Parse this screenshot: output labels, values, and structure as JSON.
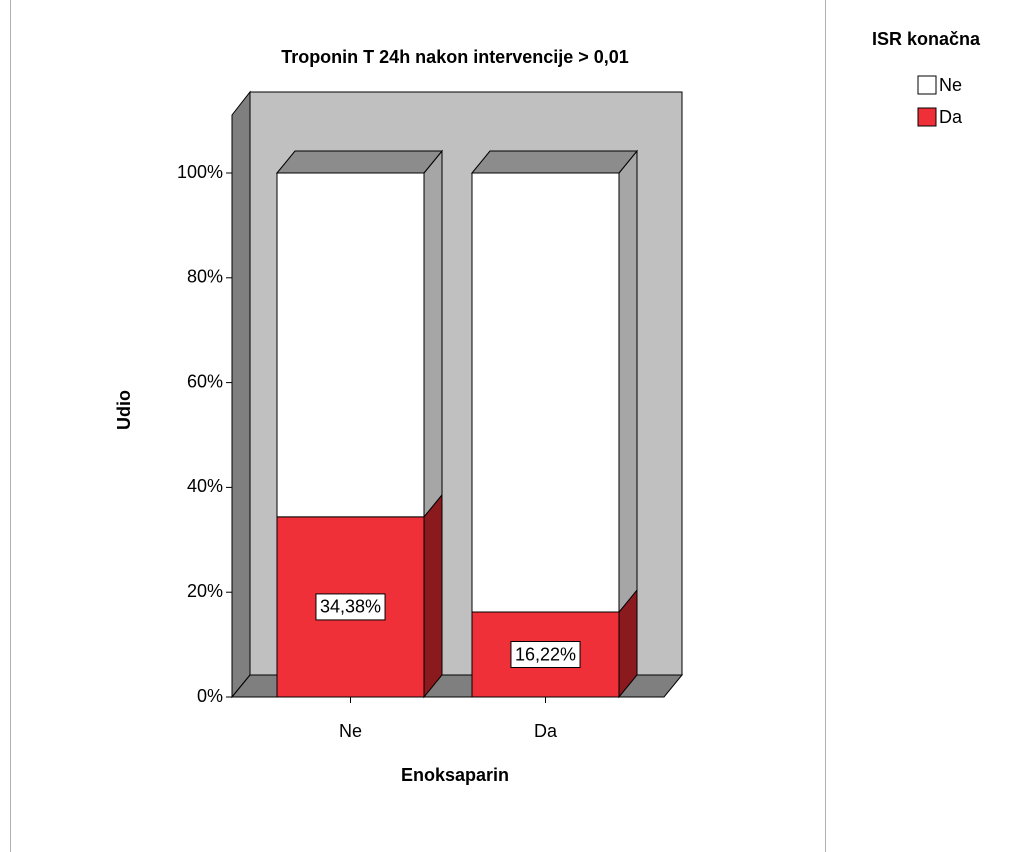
{
  "chart_data": {
    "type": "bar",
    "stacked": true,
    "title": "Troponin T 24h nakon intervencije > 0,01",
    "x_label": "Enoksaparin",
    "y_label": "Udio",
    "legend_title": "ISR konačna",
    "categories": [
      "Ne",
      "Da"
    ],
    "series": [
      {
        "name": "Ne",
        "color": "#ffffff",
        "values": [
          65.62,
          83.78
        ]
      },
      {
        "name": "Da",
        "color": "#ef3038",
        "values": [
          34.38,
          16.22
        ],
        "value_labels": [
          "34,38%",
          "16,22%"
        ]
      }
    ],
    "ylim": [
      0,
      100
    ],
    "yticks": [
      {
        "value": 0,
        "label": "0%"
      },
      {
        "value": 20,
        "label": "20%"
      },
      {
        "value": 40,
        "label": "40%"
      },
      {
        "value": 60,
        "label": "60%"
      },
      {
        "value": 80,
        "label": "80%"
      },
      {
        "value": 100,
        "label": "100%"
      }
    ]
  }
}
